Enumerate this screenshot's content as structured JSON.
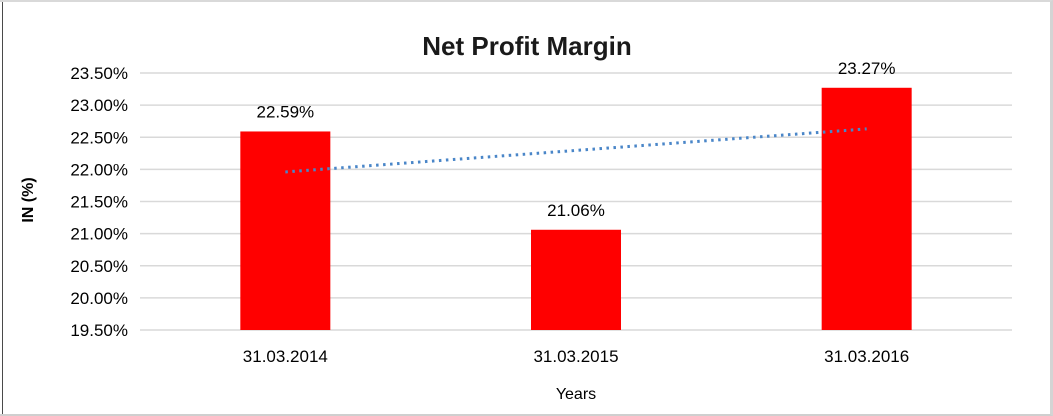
{
  "chart_data": {
    "type": "bar",
    "title": "Net Profit Margin",
    "xlabel": "Years",
    "ylabel": "IN (%)",
    "categories": [
      "31.03.2014",
      "31.03.2015",
      "31.03.2016"
    ],
    "values": [
      22.59,
      21.06,
      23.27
    ],
    "data_labels": [
      "22.59%",
      "21.06%",
      "23.27%"
    ],
    "ylim": [
      19.5,
      23.5
    ],
    "ytick_step": 0.5,
    "ytick_labels": [
      "19.50%",
      "20.00%",
      "20.50%",
      "21.00%",
      "21.50%",
      "22.00%",
      "22.50%",
      "23.00%",
      "23.50%"
    ],
    "grid": true,
    "legend": "none",
    "bar_color": "#FF0000",
    "gridline_color": "#D9D9D9",
    "text_color": "#000000",
    "trendline": {
      "type": "linear",
      "style": "dotted",
      "color": "#4A86C8",
      "from_value": 21.96,
      "to_value": 22.63
    }
  }
}
